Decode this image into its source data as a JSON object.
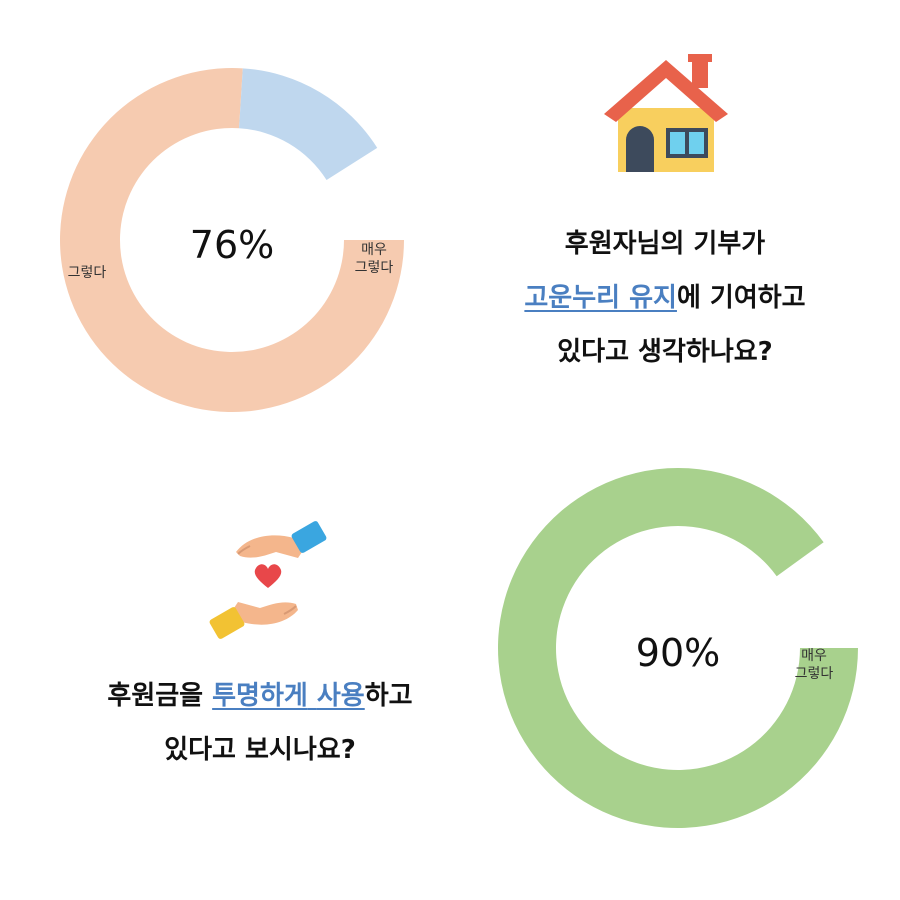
{
  "chart_data": [
    {
      "type": "pie",
      "center_label": "76%",
      "slices": [
        {
          "label": "매우 그렇다",
          "label_lines": [
            "매우",
            "그렇다"
          ],
          "value": 76,
          "color": "#f6cbb0"
        },
        {
          "label": "그렇다",
          "label_lines": [
            "그렇다"
          ],
          "value": 15,
          "color": "#bfd7ee"
        }
      ]
    },
    {
      "type": "pie",
      "center_label": "90%",
      "slices": [
        {
          "label": "매우 그렇다",
          "label_lines": [
            "매우",
            "그렇다"
          ],
          "value": 90,
          "color": "#a8d18d"
        }
      ]
    }
  ],
  "question1": {
    "line1": "후원자님의 기부가",
    "line2_highlight": "고운누리 유지",
    "line2_rest": "에 기여하고",
    "line3": "있다고 생각하나요?"
  },
  "question2": {
    "line1_pre": "후원금을 ",
    "line1_highlight1": "투명하게",
    "line1_highlight_gap": " ",
    "line1_highlight2": "사용",
    "line1_post": "하고",
    "line2": "있다고 보시나요?"
  },
  "icons": {
    "house": "house-icon",
    "hands_heart": "hands-heart-icon"
  },
  "colors": {
    "highlight_text": "#4a7fc1",
    "very_agree_1": "#f6cbb0",
    "agree_1": "#bfd7ee",
    "very_agree_2": "#a8d18d"
  }
}
